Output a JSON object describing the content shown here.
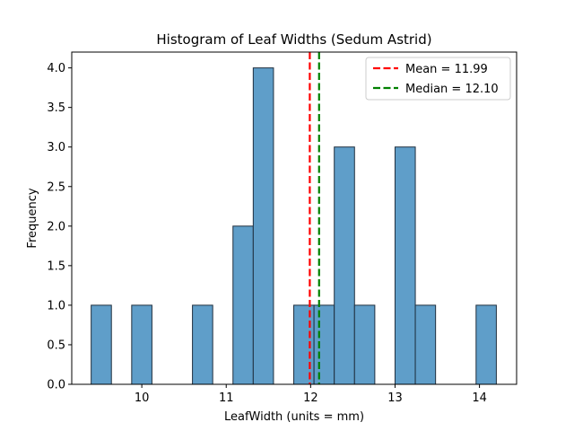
{
  "chart_data": {
    "type": "bar",
    "title": "Histogram of Leaf Widths (Sedum Astrid)",
    "xlabel": "LeafWidth (units = mm)",
    "ylabel": "Frequency",
    "xlim": [
      9.17,
      14.44
    ],
    "ylim": [
      0,
      4.2
    ],
    "xticks": [
      10,
      11,
      12,
      13,
      14
    ],
    "yticks": [
      0.0,
      0.5,
      1.0,
      1.5,
      2.0,
      2.5,
      3.0,
      3.5,
      4.0
    ],
    "bin_width": 0.24,
    "bins": [
      {
        "start": 9.4,
        "count": 1
      },
      {
        "start": 9.88,
        "count": 1
      },
      {
        "start": 10.6,
        "count": 1
      },
      {
        "start": 11.08,
        "count": 2
      },
      {
        "start": 11.32,
        "count": 4
      },
      {
        "start": 11.8,
        "count": 1
      },
      {
        "start": 12.04,
        "count": 1
      },
      {
        "start": 12.28,
        "count": 3
      },
      {
        "start": 12.52,
        "count": 1
      },
      {
        "start": 13.0,
        "count": 3
      },
      {
        "start": 13.24,
        "count": 1
      },
      {
        "start": 13.96,
        "count": 1
      }
    ],
    "bar_color": "#5f9ec9",
    "bar_edge_color": "#1f2f3f",
    "lines": [
      {
        "label": "Mean = 11.99",
        "x": 11.99,
        "color": "#ff0000"
      },
      {
        "label": "Median = 12.10",
        "x": 12.1,
        "color": "#008000"
      }
    ],
    "legend_position": "top-right",
    "grid": false
  }
}
